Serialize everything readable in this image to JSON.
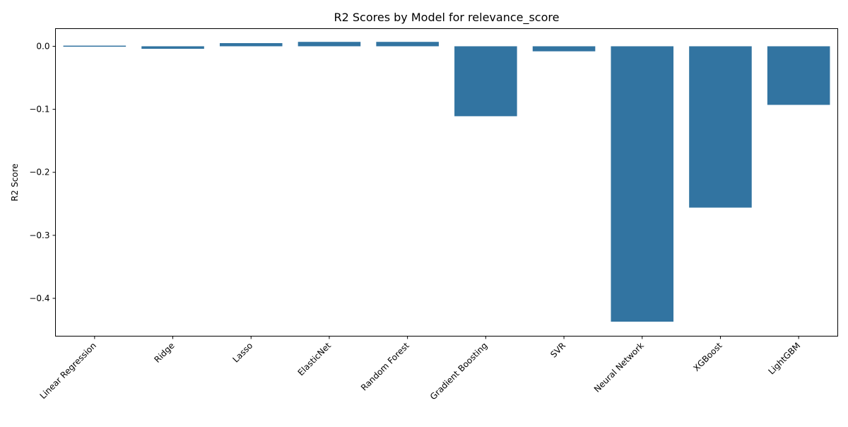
{
  "chart_data": {
    "type": "bar",
    "title": "R2 Scores by Model for relevance_score",
    "xlabel": "",
    "ylabel": "R2 Score",
    "categories": [
      "Linear Regression",
      "Ridge",
      "Lasso",
      "ElasticNet",
      "Random Forest",
      "Gradient Boosting",
      "SVR",
      "Neural Network",
      "XGBoost",
      "LightGBM"
    ],
    "values": [
      0.001,
      -0.004,
      0.005,
      0.007,
      0.007,
      -0.111,
      -0.008,
      -0.437,
      -0.256,
      -0.093
    ],
    "ylim": [
      -0.46,
      0.028
    ],
    "yticks": [
      0.0,
      -0.1,
      -0.2,
      -0.3,
      -0.4
    ],
    "ytick_labels": [
      "0.0",
      "−0.1",
      "−0.2",
      "−0.3",
      "−0.4"
    ],
    "bar_color": "#3274a1",
    "grid": false,
    "legend": "none"
  }
}
